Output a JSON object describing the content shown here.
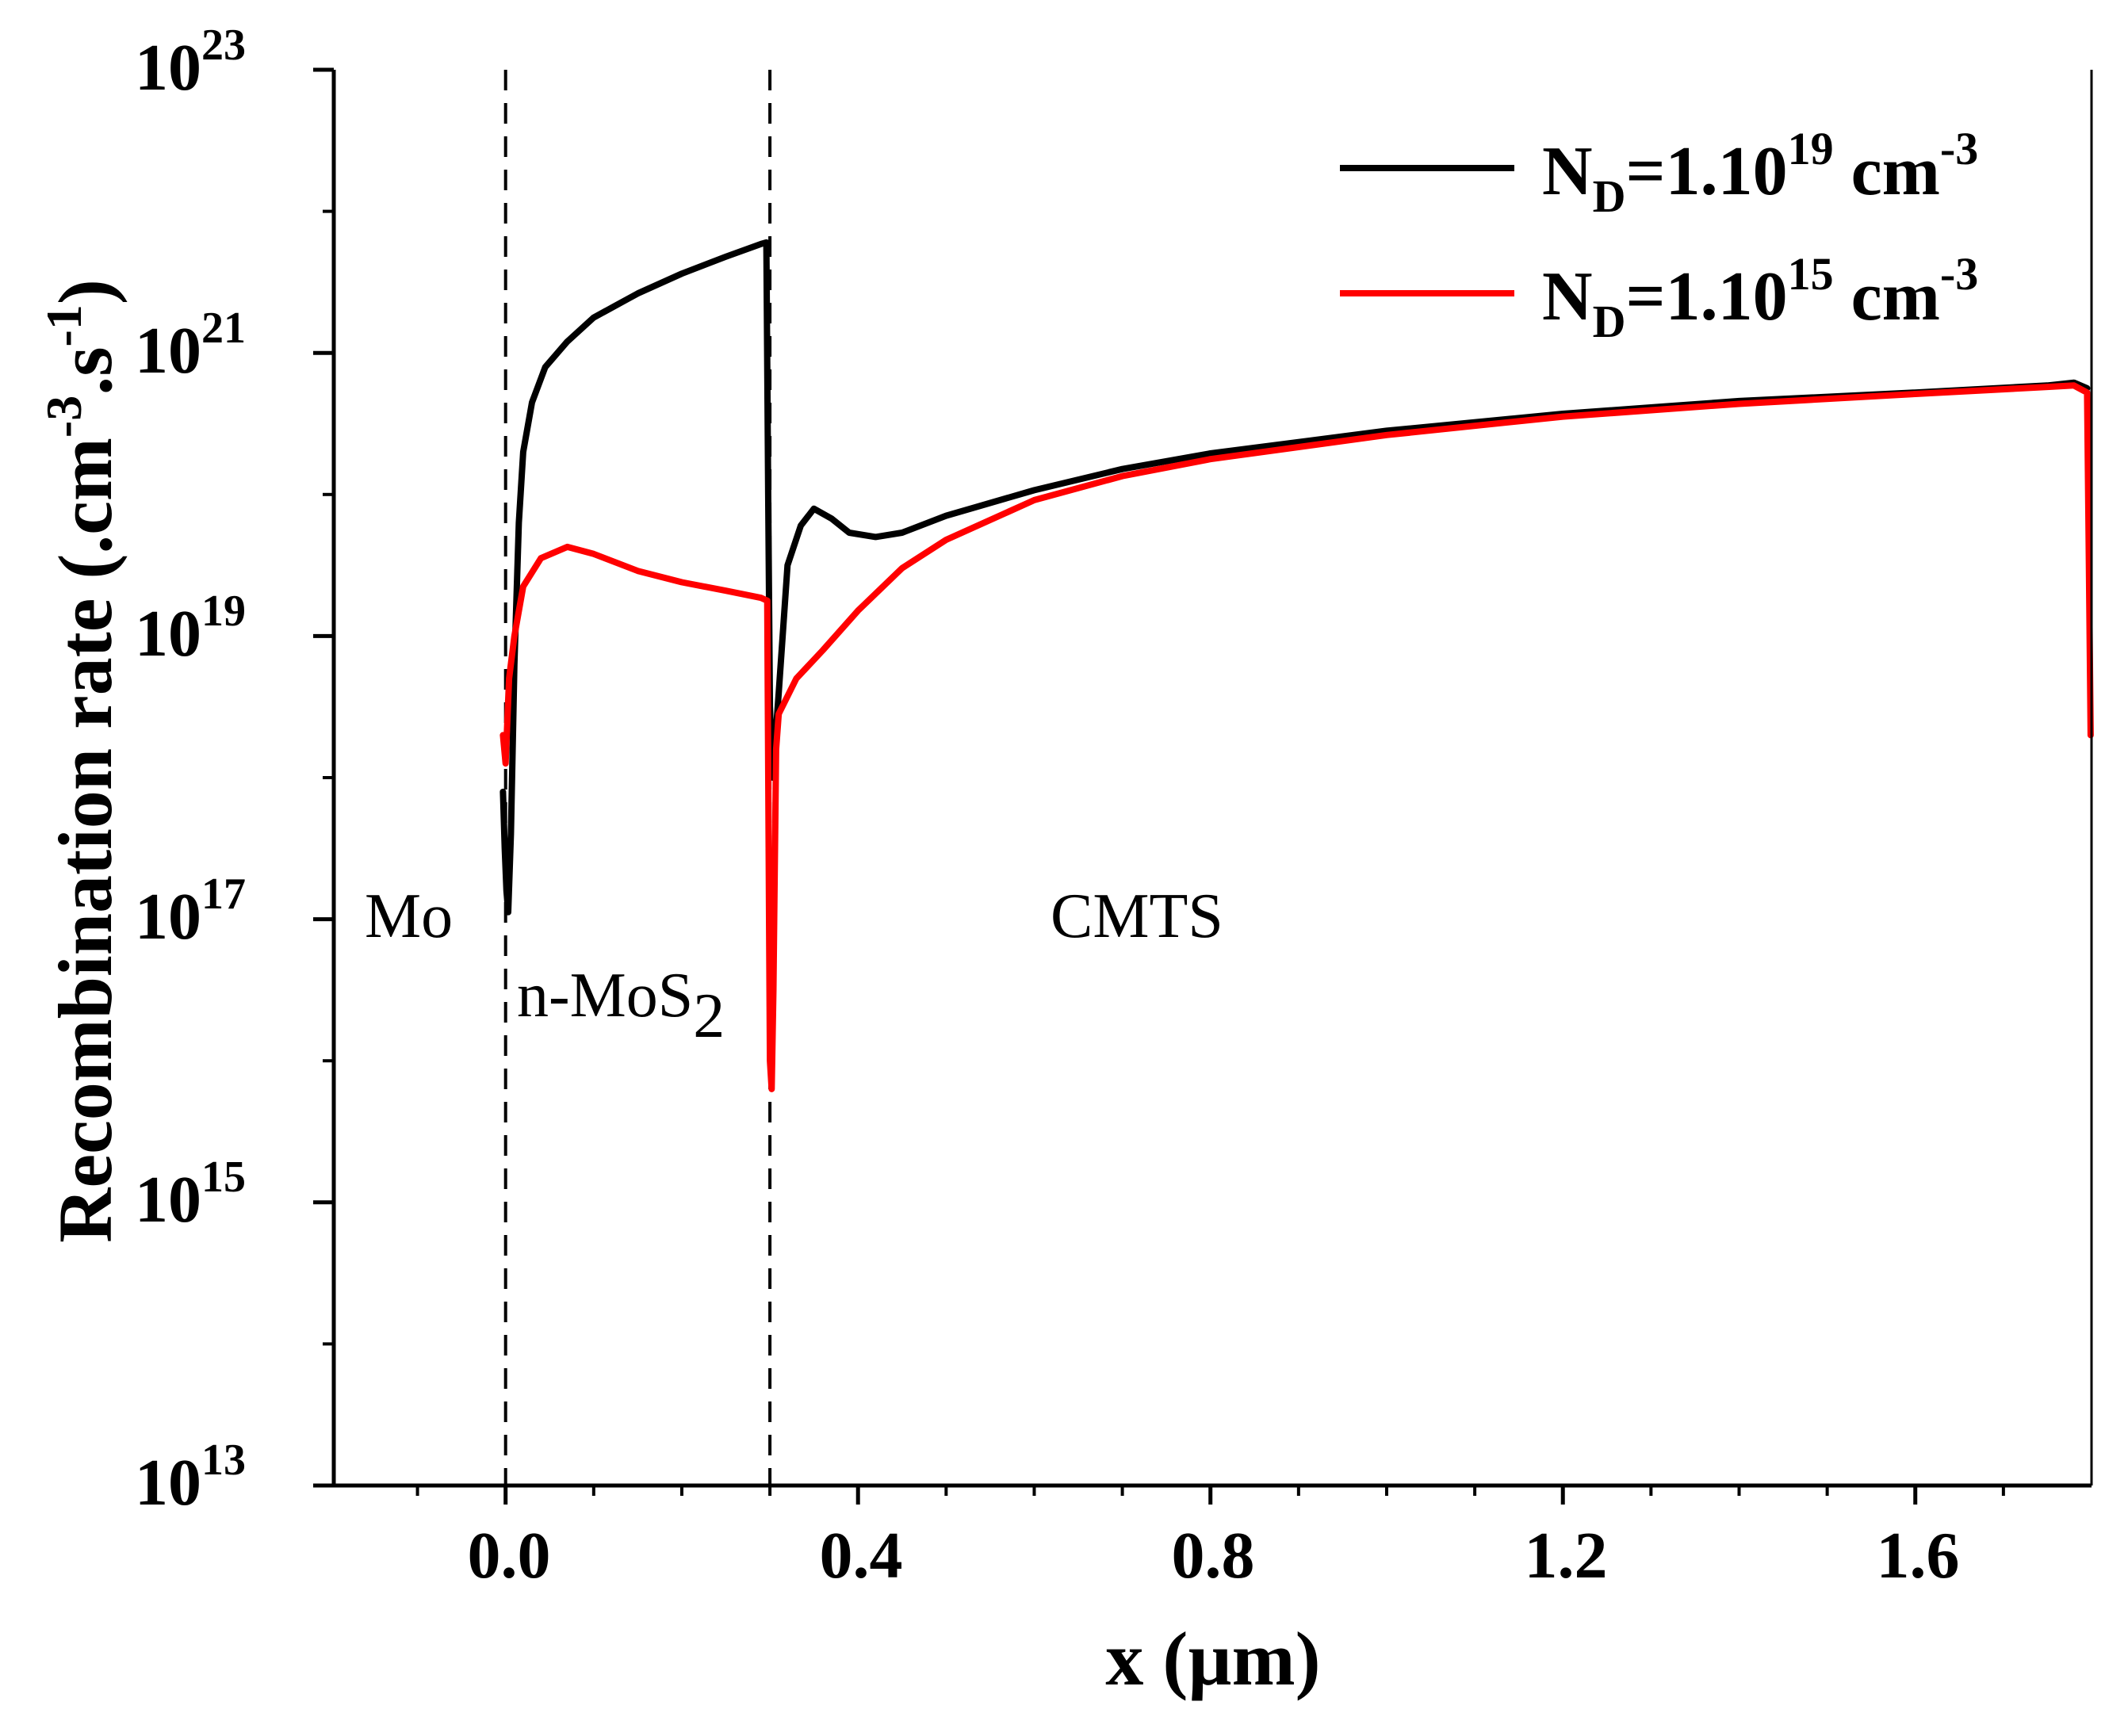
{
  "chart_data": {
    "type": "line",
    "xlabel": "x (µm)",
    "ylabel": "Recombination rate (.cm-3.s-1)",
    "ylabel_parts": {
      "main": "Recombination rate (.cm",
      "sup1": "-3",
      "mid": ".s",
      "sup2": "-1",
      "end": ")"
    },
    "xlim": [
      -0.195,
      1.8
    ],
    "ylim_exp": [
      13,
      23
    ],
    "y_scale": "log",
    "x_ticks": [
      0.0,
      0.4,
      0.8,
      1.2,
      1.6
    ],
    "x_tick_labels": [
      "0.0",
      "0.4",
      "0.8",
      "1.2",
      "1.6"
    ],
    "y_tick_exps": [
      13,
      15,
      17,
      19,
      21,
      23
    ],
    "y_tick_labels": [
      {
        "base": "10",
        "exp": "13"
      },
      {
        "base": "10",
        "exp": "15"
      },
      {
        "base": "10",
        "exp": "17"
      },
      {
        "base": "10",
        "exp": "19"
      },
      {
        "base": "10",
        "exp": "21"
      },
      {
        "base": "10",
        "exp": "23"
      }
    ],
    "boundaries": [
      0.0,
      0.3
    ],
    "regions": [
      {
        "text": "Mo",
        "x": -0.11,
        "y_exp": 17.0
      },
      {
        "text": "n-MoS",
        "sub": "2",
        "x": 0.005,
        "y_exp": 16.5
      },
      {
        "text": "CMTS",
        "x": 0.74,
        "y_exp": 17.0
      }
    ],
    "legend": {
      "position": "top-right"
    },
    "series": [
      {
        "name": "ND=1.1019 cm-3",
        "label": {
          "n": "N",
          "sub": "D",
          "eq": "=1.10",
          "exp": "19",
          "unit": " cm",
          "unit_exp": "-3"
        },
        "color": "#000000",
        "points": [
          [
            -0.003,
            17.9
          ],
          [
            -0.001,
            17.5
          ],
          [
            0.001,
            17.2
          ],
          [
            0.003,
            17.05
          ],
          [
            0.006,
            17.6
          ],
          [
            0.01,
            18.8
          ],
          [
            0.015,
            19.8
          ],
          [
            0.02,
            20.3
          ],
          [
            0.03,
            20.65
          ],
          [
            0.045,
            20.9
          ],
          [
            0.07,
            21.08
          ],
          [
            0.1,
            21.25
          ],
          [
            0.15,
            21.42
          ],
          [
            0.2,
            21.56
          ],
          [
            0.25,
            21.68
          ],
          [
            0.29,
            21.77
          ],
          [
            0.296,
            21.78
          ],
          [
            0.298,
            20.0
          ],
          [
            0.3,
            18.5
          ],
          [
            0.303,
            18.0
          ],
          [
            0.31,
            18.6
          ],
          [
            0.32,
            19.5
          ],
          [
            0.335,
            19.78
          ],
          [
            0.35,
            19.9
          ],
          [
            0.37,
            19.83
          ],
          [
            0.39,
            19.73
          ],
          [
            0.42,
            19.7
          ],
          [
            0.45,
            19.73
          ],
          [
            0.5,
            19.85
          ],
          [
            0.6,
            20.03
          ],
          [
            0.7,
            20.18
          ],
          [
            0.8,
            20.29
          ],
          [
            1.0,
            20.45
          ],
          [
            1.2,
            20.57
          ],
          [
            1.4,
            20.66
          ],
          [
            1.6,
            20.72
          ],
          [
            1.75,
            20.77
          ],
          [
            1.78,
            20.79
          ],
          [
            1.795,
            20.75
          ]
        ]
      },
      {
        "name": "ND=1.1015 cm-3",
        "label": {
          "n": "N",
          "sub": "D",
          "eq": "=1.10",
          "exp": "15",
          "unit": " cm",
          "unit_exp": "-3"
        },
        "color": "#ff0000",
        "points": [
          [
            -0.003,
            18.3
          ],
          [
            0.0,
            18.1
          ],
          [
            0.004,
            18.7
          ],
          [
            0.01,
            19.0
          ],
          [
            0.02,
            19.35
          ],
          [
            0.04,
            19.55
          ],
          [
            0.07,
            19.63
          ],
          [
            0.1,
            19.58
          ],
          [
            0.15,
            19.46
          ],
          [
            0.2,
            19.38
          ],
          [
            0.25,
            19.32
          ],
          [
            0.29,
            19.27
          ],
          [
            0.297,
            19.25
          ],
          [
            0.299,
            17.0
          ],
          [
            0.3,
            16.0
          ],
          [
            0.302,
            15.8
          ],
          [
            0.304,
            16.5
          ],
          [
            0.307,
            18.2
          ],
          [
            0.31,
            18.45
          ],
          [
            0.33,
            18.7
          ],
          [
            0.36,
            18.9
          ],
          [
            0.4,
            19.18
          ],
          [
            0.45,
            19.48
          ],
          [
            0.5,
            19.68
          ],
          [
            0.6,
            19.96
          ],
          [
            0.7,
            20.13
          ],
          [
            0.8,
            20.25
          ],
          [
            1.0,
            20.42
          ],
          [
            1.2,
            20.55
          ],
          [
            1.4,
            20.64
          ],
          [
            1.6,
            20.71
          ],
          [
            1.75,
            20.76
          ],
          [
            1.78,
            20.77
          ],
          [
            1.795,
            20.72
          ],
          [
            1.797,
            19.5
          ],
          [
            1.799,
            18.3
          ]
        ]
      }
    ]
  }
}
